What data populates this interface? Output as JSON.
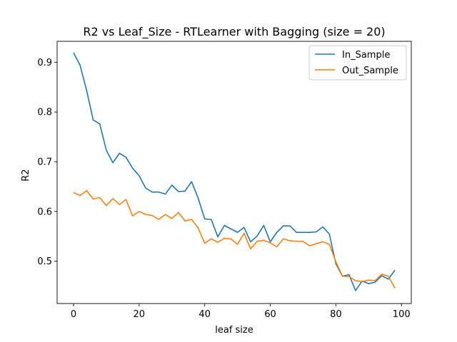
{
  "chart_data": {
    "type": "line",
    "title": "R2 vs Leaf_Size - RTLearner with Bagging (size = 20)",
    "xlabel": "leaf size",
    "ylabel": "R2",
    "xlim": [
      -5,
      103
    ],
    "ylim": [
      0.415,
      0.942
    ],
    "xticks": [
      0,
      20,
      40,
      60,
      80,
      100
    ],
    "yticks": [
      0.5,
      0.6,
      0.7,
      0.8,
      0.9
    ],
    "legend_position": "top-right",
    "grid": false,
    "x": [
      0,
      2,
      4,
      6,
      8,
      10,
      12,
      14,
      16,
      18,
      20,
      22,
      24,
      26,
      28,
      30,
      32,
      34,
      36,
      38,
      40,
      42,
      44,
      46,
      48,
      50,
      52,
      54,
      56,
      58,
      60,
      62,
      64,
      66,
      68,
      70,
      72,
      74,
      76,
      78,
      80,
      82,
      84,
      86,
      88,
      90,
      92,
      94,
      96,
      98
    ],
    "series": [
      {
        "name": "In_Sample",
        "color": "#1f77b4",
        "values": [
          0.919,
          0.894,
          0.843,
          0.784,
          0.776,
          0.723,
          0.698,
          0.717,
          0.709,
          0.687,
          0.672,
          0.647,
          0.639,
          0.639,
          0.635,
          0.653,
          0.64,
          0.641,
          0.66,
          0.627,
          0.585,
          0.584,
          0.549,
          0.572,
          0.565,
          0.558,
          0.568,
          0.539,
          0.551,
          0.572,
          0.539,
          0.558,
          0.571,
          0.571,
          0.558,
          0.558,
          0.558,
          0.559,
          0.569,
          0.555,
          0.495,
          0.47,
          0.473,
          0.441,
          0.46,
          0.455,
          0.458,
          0.471,
          0.464,
          0.482
        ]
      },
      {
        "name": "Out_Sample",
        "color": "#ff7f0e",
        "values": [
          0.638,
          0.632,
          0.642,
          0.625,
          0.628,
          0.612,
          0.626,
          0.614,
          0.624,
          0.591,
          0.6,
          0.594,
          0.592,
          0.584,
          0.594,
          0.586,
          0.598,
          0.581,
          0.584,
          0.567,
          0.536,
          0.545,
          0.538,
          0.546,
          0.545,
          0.534,
          0.556,
          0.525,
          0.54,
          0.542,
          0.537,
          0.529,
          0.545,
          0.541,
          0.54,
          0.54,
          0.531,
          0.535,
          0.539,
          0.534,
          0.499,
          0.47,
          0.469,
          0.461,
          0.459,
          0.462,
          0.461,
          0.474,
          0.47,
          0.446
        ]
      }
    ]
  }
}
